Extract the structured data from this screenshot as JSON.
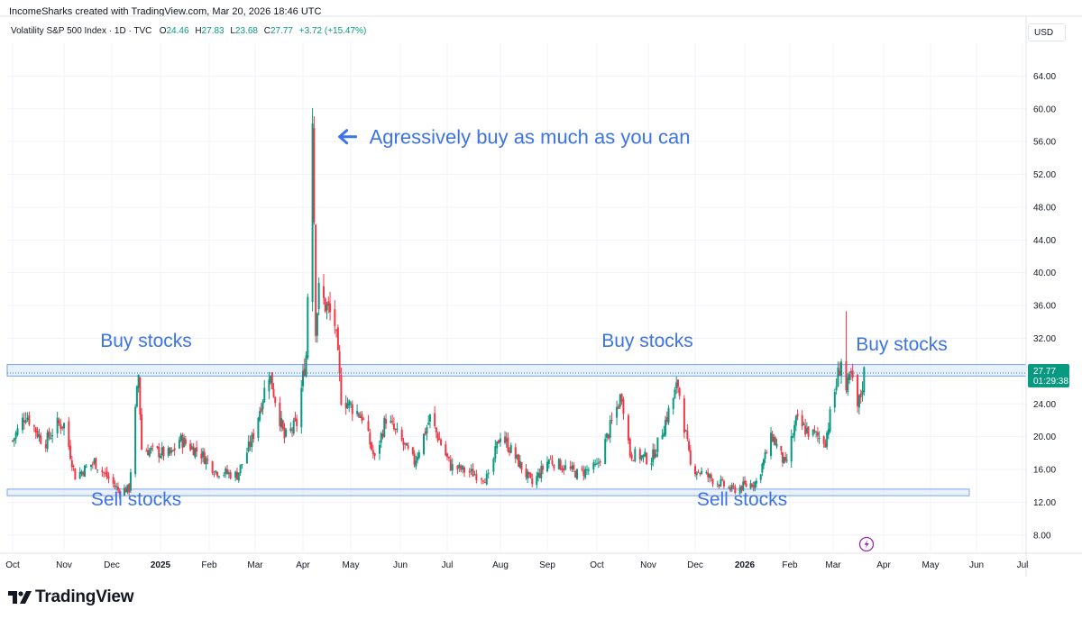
{
  "header": {
    "published_by": "IncomeSharks created with TradingView.com, Mar 20, 2026 18:46 UTC"
  },
  "legend": {
    "instrument": "Volatility S&P 500 Index · 1D · TVC",
    "open_label": "O",
    "open": "24.46",
    "high_label": "H",
    "high": "27.83",
    "low_label": "L",
    "low": "23.68",
    "close_label": "C",
    "close": "27.77",
    "change": "+3.72 (+15.47%)"
  },
  "currency": "USD",
  "price_tag": {
    "price": "27.77",
    "countdown": "01:29:38"
  },
  "brand": {
    "name": "TradingView",
    "logo_icon": "tradingview-logo-icon"
  },
  "colors": {
    "up": "#089981",
    "down": "#f23645",
    "annotation": "#3d73e8",
    "zone_fill": "#dbe8fb",
    "zone_border": "#7aa3ef",
    "price_tag_bg": "#089981"
  },
  "chart_data": {
    "type": "candlestick",
    "instrument": "Volatility S&P 500 Index",
    "interval": "1D",
    "ylim": [
      6,
      68
    ],
    "y_ticks": [
      "8.00",
      "12.00",
      "16.00",
      "20.00",
      "24.00",
      "28.00",
      "32.00",
      "36.00",
      "40.00",
      "44.00",
      "48.00",
      "52.00",
      "56.00",
      "60.00",
      "64.00"
    ],
    "x_ticks": [
      {
        "label": "Oct",
        "date": "2024-10-01"
      },
      {
        "label": "Nov",
        "date": "2024-11-01"
      },
      {
        "label": "Dec",
        "date": "2024-12-01"
      },
      {
        "label": "2025",
        "date": "2025-01-01",
        "bold": true
      },
      {
        "label": "Feb",
        "date": "2025-02-01"
      },
      {
        "label": "Mar",
        "date": "2025-03-01"
      },
      {
        "label": "Apr",
        "date": "2025-04-01"
      },
      {
        "label": "May",
        "date": "2025-05-01"
      },
      {
        "label": "Jun",
        "date": "2025-06-01"
      },
      {
        "label": "Jul",
        "date": "2025-07-01"
      },
      {
        "label": "Aug",
        "date": "2025-08-01"
      },
      {
        "label": "Sep",
        "date": "2025-09-01"
      },
      {
        "label": "Oct",
        "date": "2025-10-01"
      },
      {
        "label": "Nov",
        "date": "2025-11-01"
      },
      {
        "label": "Dec",
        "date": "2025-12-01"
      },
      {
        "label": "2026",
        "date": "2026-01-01",
        "bold": true
      },
      {
        "label": "Feb",
        "date": "2026-02-01"
      },
      {
        "label": "Mar",
        "date": "2026-03-01"
      },
      {
        "label": "Apr",
        "date": "2026-04-01"
      },
      {
        "label": "May",
        "date": "2026-05-01"
      },
      {
        "label": "Jun",
        "date": "2026-06-01"
      },
      {
        "label": "Jul",
        "date": "2026-07-01"
      }
    ],
    "series_points": [
      {
        "date": "2024-10-01",
        "value": 19.5
      },
      {
        "date": "2024-10-09",
        "value": 22.8
      },
      {
        "date": "2024-10-20",
        "value": 19.1
      },
      {
        "date": "2024-10-28",
        "value": 21.5
      },
      {
        "date": "2024-11-01",
        "value": 21.5
      },
      {
        "date": "2024-11-08",
        "value": 15.2
      },
      {
        "date": "2024-11-20",
        "value": 16.9
      },
      {
        "date": "2024-12-05",
        "value": 13.5
      },
      {
        "date": "2024-12-12",
        "value": 13.6
      },
      {
        "date": "2024-12-18",
        "value": 27.6
      },
      {
        "date": "2024-12-20",
        "value": 18.5
      },
      {
        "date": "2025-01-08",
        "value": 17.8
      },
      {
        "date": "2025-01-13",
        "value": 19.7
      },
      {
        "date": "2025-01-27",
        "value": 17.9
      },
      {
        "date": "2025-02-05",
        "value": 15.8
      },
      {
        "date": "2025-02-18",
        "value": 15.3
      },
      {
        "date": "2025-02-27",
        "value": 19.6
      },
      {
        "date": "2025-03-10",
        "value": 27.9
      },
      {
        "date": "2025-03-20",
        "value": 19.8
      },
      {
        "date": "2025-03-28",
        "value": 21.6
      },
      {
        "date": "2025-04-03",
        "value": 30.0
      },
      {
        "date": "2025-04-07",
        "value": 60.1
      },
      {
        "date": "2025-04-09",
        "value": 33.6
      },
      {
        "date": "2025-04-11",
        "value": 37.6
      },
      {
        "date": "2025-04-21",
        "value": 33.8
      },
      {
        "date": "2025-04-25",
        "value": 24.8
      },
      {
        "date": "2025-05-08",
        "value": 22.5
      },
      {
        "date": "2025-05-16",
        "value": 17.2
      },
      {
        "date": "2025-05-23",
        "value": 22.3
      },
      {
        "date": "2025-06-10",
        "value": 16.9
      },
      {
        "date": "2025-06-20",
        "value": 22.3
      },
      {
        "date": "2025-07-03",
        "value": 16.4
      },
      {
        "date": "2025-07-25",
        "value": 14.9
      },
      {
        "date": "2025-08-01",
        "value": 20.4
      },
      {
        "date": "2025-08-22",
        "value": 14.2
      },
      {
        "date": "2025-09-02",
        "value": 17.2
      },
      {
        "date": "2025-09-19",
        "value": 15.5
      },
      {
        "date": "2025-10-01",
        "value": 16.3
      },
      {
        "date": "2025-10-10",
        "value": 21.7
      },
      {
        "date": "2025-10-16",
        "value": 25.3
      },
      {
        "date": "2025-10-21",
        "value": 17.9
      },
      {
        "date": "2025-11-03",
        "value": 17.2
      },
      {
        "date": "2025-11-07",
        "value": 19.1
      },
      {
        "date": "2025-11-20",
        "value": 26.4
      },
      {
        "date": "2025-11-28",
        "value": 16.4
      },
      {
        "date": "2025-12-11",
        "value": 14.9
      },
      {
        "date": "2025-12-24",
        "value": 13.5
      },
      {
        "date": "2026-01-09",
        "value": 14.5
      },
      {
        "date": "2026-01-20",
        "value": 20.1
      },
      {
        "date": "2026-01-29",
        "value": 16.4
      },
      {
        "date": "2026-02-05",
        "value": 21.8
      },
      {
        "date": "2026-02-13",
        "value": 20.6
      },
      {
        "date": "2026-02-24",
        "value": 19.5
      },
      {
        "date": "2026-03-06",
        "value": 29.5
      },
      {
        "date": "2026-03-09",
        "value": 25.5
      },
      {
        "date": "2026-03-12",
        "value": 27.3
      },
      {
        "date": "2026-03-16",
        "value": 23.5
      },
      {
        "date": "2026-03-18",
        "value": 25.1
      },
      {
        "date": "2026-03-20",
        "value": 27.77
      }
    ],
    "zones": [
      {
        "name": "buy-zone",
        "start": "2024-10-01",
        "end": "2026-06-30",
        "low": 27.4,
        "high": 28.8
      },
      {
        "name": "sell-zone",
        "start": "2024-10-01",
        "end": "2026-06-30",
        "low": 12.8,
        "high": 13.6
      }
    ],
    "annotations": [
      {
        "text": "Agressively buy as much as you can",
        "date": "2025-04-07",
        "value": 60.1
      },
      {
        "text": "Buy stocks",
        "date": "2024-12-20",
        "value": 30.0
      },
      {
        "text": "Buy stocks",
        "date": "2025-10-15",
        "value": 30.0
      },
      {
        "text": "Buy stocks",
        "date": "2026-03-20",
        "value": 29.6
      },
      {
        "text": "Sell stocks",
        "date": "2024-12-10",
        "value": 11.2
      },
      {
        "text": "Sell stocks",
        "date": "2025-12-28",
        "value": 11.2
      }
    ],
    "last_price": 27.77,
    "grid": true,
    "legend_position": "top-left"
  }
}
